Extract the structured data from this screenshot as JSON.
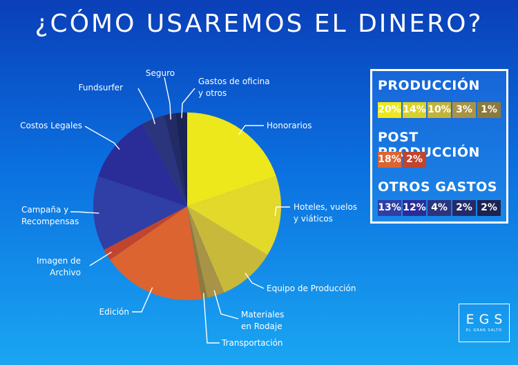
{
  "title": "¿CÓMO USAREMOS EL DINERO?",
  "logo": {
    "mark": "EGS",
    "sub": "EL GRAN SALTO"
  },
  "chart_data": {
    "type": "pie",
    "slices": [
      {
        "label": [
          "Honorarios"
        ],
        "value": 20,
        "color": "#ece81c"
      },
      {
        "label": [
          "Hoteles, vuelos",
          "y viáticos"
        ],
        "value": 14,
        "color": "#e3d92b"
      },
      {
        "label": [
          "Equipo de Producción"
        ],
        "value": 10,
        "color": "#c9b93a"
      },
      {
        "label": [
          "Materiales",
          "en Rodaje"
        ],
        "value": 3,
        "color": "#a89346"
      },
      {
        "label": [
          "Transportación"
        ],
        "value": 1,
        "color": "#8c7a3c"
      },
      {
        "label": [
          "Edición"
        ],
        "value": 18,
        "color": "#dc6431"
      },
      {
        "label": [
          "Imagen de",
          "Archivo"
        ],
        "value": 2,
        "color": "#c1442e"
      },
      {
        "label": [
          "Campaña y",
          "Recompensas"
        ],
        "value": 13,
        "color": "#2f3fa6"
      },
      {
        "label": [
          "Costos Legales"
        ],
        "value": 12,
        "color": "#2a2c98"
      },
      {
        "label": [
          "Fundsurfer"
        ],
        "value": 4,
        "color": "#2b357d"
      },
      {
        "label": [
          "Seguro"
        ],
        "value": 2,
        "color": "#232b67"
      },
      {
        "label": [
          "Gastos de oficina",
          "y otros"
        ],
        "value": 2,
        "color": "#1b2350"
      }
    ]
  },
  "legend": {
    "groups": [
      {
        "title": "PRODUCCIÓN",
        "items": [
          {
            "text": "20%",
            "color": "#ece81c"
          },
          {
            "text": "14%",
            "color": "#d9d02a"
          },
          {
            "text": "10%",
            "color": "#c4b33a"
          },
          {
            "text": "3%",
            "color": "#a89346"
          },
          {
            "text": "1%",
            "color": "#8c7a3c"
          }
        ]
      },
      {
        "title": "POST PRODUCCIÓN",
        "items": [
          {
            "text": "18%",
            "color": "#dc6431"
          },
          {
            "text": "2%",
            "color": "#c1442e"
          }
        ]
      },
      {
        "title": "OTROS GASTOS",
        "items": [
          {
            "text": "13%",
            "color": "#2f3fa6"
          },
          {
            "text": "12%",
            "color": "#2a2c98"
          },
          {
            "text": "4%",
            "color": "#2b357d"
          },
          {
            "text": "2%",
            "color": "#232b67"
          },
          {
            "text": "2%",
            "color": "#1b2350"
          }
        ]
      }
    ]
  }
}
